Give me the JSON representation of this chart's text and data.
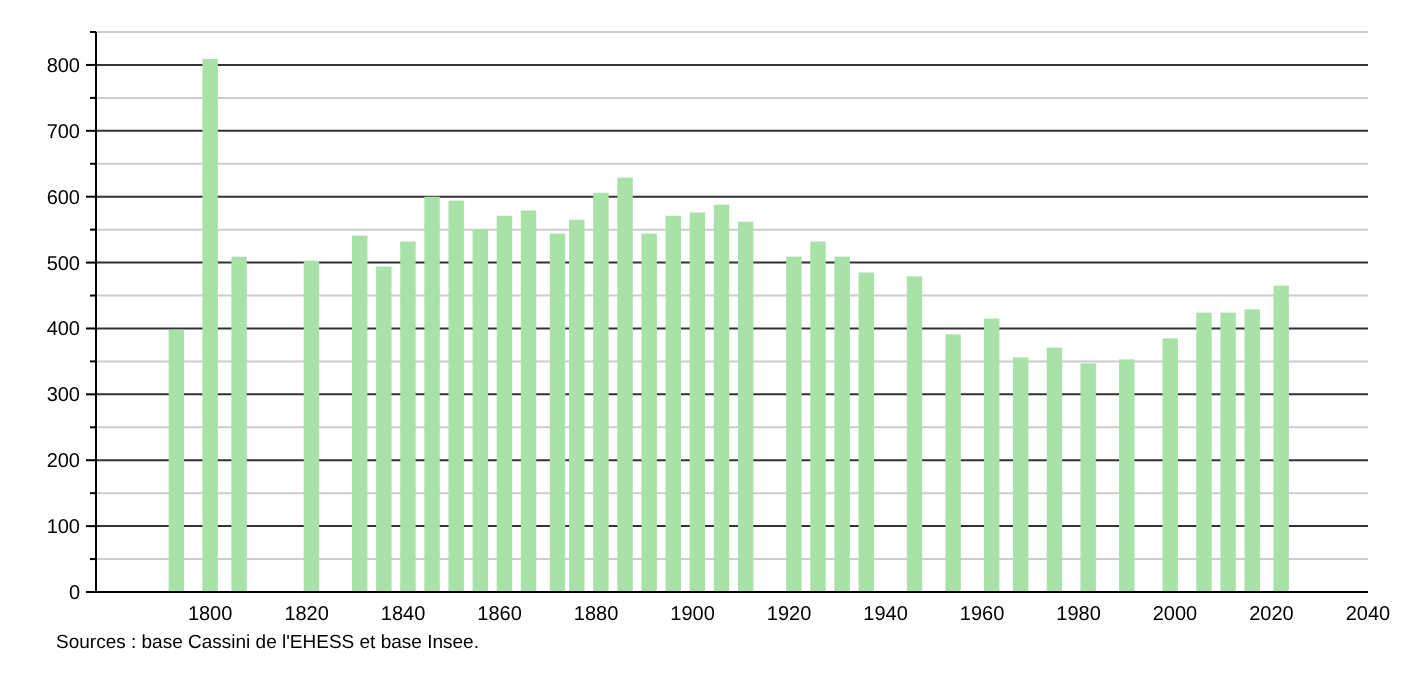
{
  "chart_data": {
    "type": "bar",
    "x": [
      1793,
      1800,
      1806,
      1821,
      1831,
      1836,
      1841,
      1846,
      1851,
      1856,
      1861,
      1866,
      1872,
      1876,
      1881,
      1886,
      1891,
      1896,
      1901,
      1906,
      1911,
      1921,
      1926,
      1931,
      1936,
      1946,
      1954,
      1962,
      1968,
      1975,
      1982,
      1990,
      1999,
      2006,
      2011,
      2016,
      2022
    ],
    "values": [
      398,
      809,
      509,
      503,
      541,
      494,
      532,
      600,
      594,
      550,
      571,
      579,
      544,
      565,
      606,
      629,
      544,
      571,
      576,
      588,
      562,
      509,
      532,
      509,
      485,
      479,
      391,
      415,
      356,
      371,
      347,
      353,
      385,
      424,
      424,
      429,
      465
    ],
    "color": "#a8e2a8",
    "xlim": [
      1778,
      2040
    ],
    "xticks": [
      1800,
      1820,
      1840,
      1860,
      1880,
      1900,
      1920,
      1940,
      1960,
      1980,
      2000,
      2020,
      2040
    ],
    "ylim": [
      0,
      850
    ],
    "yticks": [
      0,
      {
        "value": 50,
        "label": null
      },
      100,
      {
        "value": 150,
        "label": null
      },
      200,
      {
        "value": 250,
        "label": null
      },
      300,
      {
        "value": 350,
        "label": null
      },
      400,
      {
        "value": 450,
        "label": null
      },
      500,
      {
        "value": 550,
        "label": null
      },
      600,
      {
        "value": 650,
        "label": null
      },
      700,
      {
        "value": 750,
        "label": null
      },
      800,
      {
        "value": 850,
        "label": null
      }
    ],
    "grid": "y",
    "annotations": [
      "Sources : base Cassini de l'EHESS et base Insee."
    ]
  }
}
